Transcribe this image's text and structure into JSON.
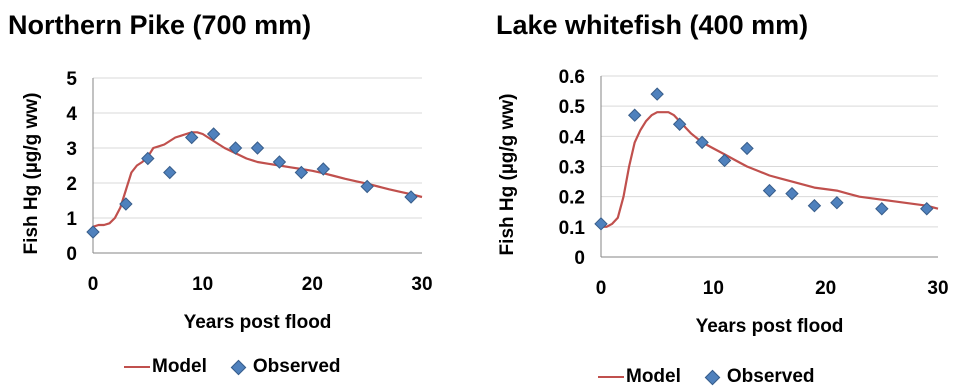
{
  "colors": {
    "model": "#c0504d",
    "observed_fill": "#4f81bd",
    "observed_stroke": "#385d8a",
    "grid": "#d9d9d9"
  },
  "chart_data": [
    {
      "type": "line",
      "title": "Northern Pike (700 mm)",
      "xlabel": "Years post flood",
      "ylabel": "Fish Hg (µg/g ww)",
      "xlim": [
        0,
        30
      ],
      "ylim": [
        0,
        5
      ],
      "xticks": [
        0,
        10,
        20,
        30
      ],
      "yticks": [
        0,
        1,
        2,
        3,
        4,
        5
      ],
      "xtick_labels": [
        "0",
        "10",
        "20",
        "30"
      ],
      "ytick_labels": [
        "0",
        "1",
        "2",
        "3",
        "4",
        "5"
      ],
      "grid": "horizontal",
      "legend": {
        "position": "bottom",
        "model_label": "Model",
        "observed_label": "Observed"
      },
      "series": [
        {
          "name": "Model",
          "kind": "line",
          "x": [
            0,
            0.5,
            1,
            1.5,
            2,
            2.5,
            3,
            3.5,
            4,
            4.5,
            5,
            5.5,
            6,
            6.5,
            7,
            7.5,
            8,
            8.5,
            9,
            9.5,
            10,
            11,
            12,
            13,
            14,
            15,
            16,
            17,
            18,
            19,
            20,
            21,
            22,
            23,
            24,
            25,
            26,
            27,
            28,
            29,
            30
          ],
          "y": [
            0.75,
            0.8,
            0.8,
            0.85,
            1.0,
            1.3,
            1.8,
            2.3,
            2.5,
            2.6,
            2.75,
            3.0,
            3.05,
            3.1,
            3.2,
            3.3,
            3.35,
            3.4,
            3.45,
            3.45,
            3.4,
            3.2,
            3.0,
            2.85,
            2.7,
            2.6,
            2.55,
            2.5,
            2.45,
            2.4,
            2.35,
            2.28,
            2.2,
            2.12,
            2.05,
            1.98,
            1.9,
            1.82,
            1.75,
            1.68,
            1.6
          ]
        },
        {
          "name": "Observed",
          "kind": "scatter",
          "points": [
            [
              0,
              0.6
            ],
            [
              3,
              1.4
            ],
            [
              5,
              2.7
            ],
            [
              7,
              2.3
            ],
            [
              9,
              3.3
            ],
            [
              11,
              3.4
            ],
            [
              13,
              3.0
            ],
            [
              15,
              3.0
            ],
            [
              17,
              2.6
            ],
            [
              19,
              2.3
            ],
            [
              21,
              2.4
            ],
            [
              25,
              1.9
            ],
            [
              29,
              1.6
            ]
          ]
        }
      ]
    },
    {
      "type": "line",
      "title": "Lake whitefish (400 mm)",
      "xlabel": "Years post flood",
      "ylabel": "Fish Hg (µg/g ww)",
      "xlim": [
        0,
        30
      ],
      "ylim": [
        0,
        0.6
      ],
      "xticks": [
        0,
        10,
        20,
        30
      ],
      "yticks": [
        0,
        0.1,
        0.2,
        0.3,
        0.4,
        0.5,
        0.6
      ],
      "xtick_labels": [
        "0",
        "10",
        "20",
        "30"
      ],
      "ytick_labels": [
        "0",
        "0.1",
        "0.2",
        "0.3",
        "0.4",
        "0.5",
        "0.6"
      ],
      "grid": "horizontal",
      "legend": {
        "position": "bottom",
        "model_label": "Model",
        "observed_label": "Observed"
      },
      "series": [
        {
          "name": "Model",
          "kind": "line",
          "x": [
            0,
            0.5,
            1,
            1.5,
            2,
            2.5,
            3,
            3.5,
            4,
            4.5,
            5,
            5.5,
            6,
            6.5,
            7,
            8,
            9,
            10,
            11,
            12,
            13,
            14,
            15,
            16,
            17,
            18,
            19,
            20,
            21,
            22,
            23,
            24,
            25,
            26,
            27,
            28,
            29,
            30
          ],
          "y": [
            0.1,
            0.1,
            0.11,
            0.13,
            0.2,
            0.3,
            0.38,
            0.42,
            0.45,
            0.47,
            0.48,
            0.48,
            0.48,
            0.47,
            0.45,
            0.41,
            0.38,
            0.36,
            0.34,
            0.32,
            0.3,
            0.285,
            0.27,
            0.26,
            0.25,
            0.24,
            0.23,
            0.225,
            0.22,
            0.21,
            0.2,
            0.195,
            0.19,
            0.185,
            0.18,
            0.175,
            0.17,
            0.16
          ]
        },
        {
          "name": "Observed",
          "kind": "scatter",
          "points": [
            [
              0,
              0.11
            ],
            [
              3,
              0.47
            ],
            [
              5,
              0.54
            ],
            [
              7,
              0.44
            ],
            [
              9,
              0.38
            ],
            [
              11,
              0.32
            ],
            [
              13,
              0.36
            ],
            [
              15,
              0.22
            ],
            [
              17,
              0.21
            ],
            [
              19,
              0.17
            ],
            [
              21,
              0.18
            ],
            [
              25,
              0.16
            ],
            [
              29,
              0.16
            ]
          ]
        }
      ]
    }
  ]
}
